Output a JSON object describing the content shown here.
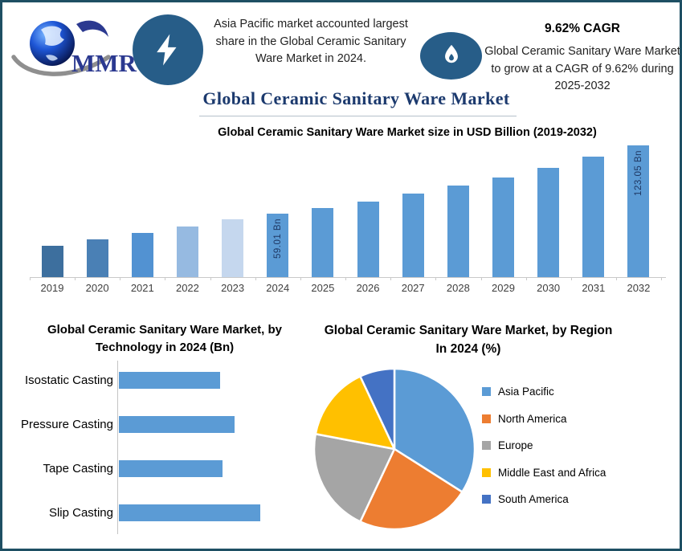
{
  "brand": {
    "logo_text": "MMR"
  },
  "header": {
    "headline": "Asia Pacific market accounted largest share in the Global Ceramic Sanitary Ware Market in 2024.",
    "cagr_title": "9.62% CAGR",
    "cagr_body": "Global Ceramic Sanitary Ware Market to grow at a CAGR of 9.62% during 2025-2032",
    "bolt_icon": "lightning-bolt",
    "flame_icon": "flame"
  },
  "main_title": "Global Ceramic Sanitary Ware Market",
  "colors": {
    "frame_border": "#1e4f63",
    "icon_circle": "#275d88",
    "title_navy": "#1c3a6e",
    "bar_blue": "#5b9bd5",
    "in_bar_label_navy": "#1f3864",
    "axis_gray": "#c9c9c9",
    "logo_blue": "#2b3990"
  },
  "chart_data": [
    {
      "type": "bar",
      "title": "Global Ceramic Sanitary Ware Market size in USD Billion (2019-2032)",
      "categories": [
        "2019",
        "2020",
        "2021",
        "2022",
        "2023",
        "2024",
        "2025",
        "2026",
        "2027",
        "2028",
        "2029",
        "2030",
        "2031",
        "2032"
      ],
      "values": [
        29,
        35,
        41,
        47,
        54,
        59.01,
        64.69,
        70.91,
        77.73,
        85.21,
        93.41,
        102.4,
        112.25,
        123.05
      ],
      "values_estimated_except_labeled": true,
      "bar_labels": [
        "",
        "",
        "",
        "",
        "",
        "59.01 Bn",
        "",
        "",
        "",
        "",
        "",
        "",
        "",
        "123.05 Bn"
      ],
      "bar_colors": [
        "#3d6f9e",
        "#4a80b5",
        "#5292d2",
        "#96bae1",
        "#c5d7ee",
        "#5b9bd5",
        "#5b9bd5",
        "#5b9bd5",
        "#5b9bd5",
        "#5b9bd5",
        "#5b9bd5",
        "#5b9bd5",
        "#5b9bd5",
        "#5b9bd5"
      ],
      "ylabel": "USD Billion",
      "ylim": [
        0,
        123.05
      ],
      "grid": false
    },
    {
      "type": "bar",
      "orientation": "horizontal",
      "title": "Global Ceramic Sanitary Ware Market, by Technology in 2024 (Bn)",
      "categories": [
        "Isostatic Casting",
        "Pressure Casting",
        "Tape Casting",
        "Slip Casting"
      ],
      "values": [
        12.9,
        14.7,
        13.2,
        18.0
      ],
      "values_estimated": true,
      "bar_color": "#5b9bd5",
      "xlim": [
        0,
        18.0
      ],
      "grid": false
    },
    {
      "type": "pie",
      "title": "Global Ceramic Sanitary Ware Market, by Region In 2024 (%)",
      "labels": [
        "Asia Pacific",
        "North America",
        "Europe",
        "Middle East and Africa",
        "South America"
      ],
      "values": [
        34,
        23,
        21,
        15,
        7
      ],
      "values_estimated": true,
      "colors": [
        "#5b9bd5",
        "#ed7d31",
        "#a5a5a5",
        "#ffc000",
        "#4472c4"
      ],
      "legend_position": "right",
      "start_angle_deg": 0,
      "direction": "clockwise"
    }
  ]
}
